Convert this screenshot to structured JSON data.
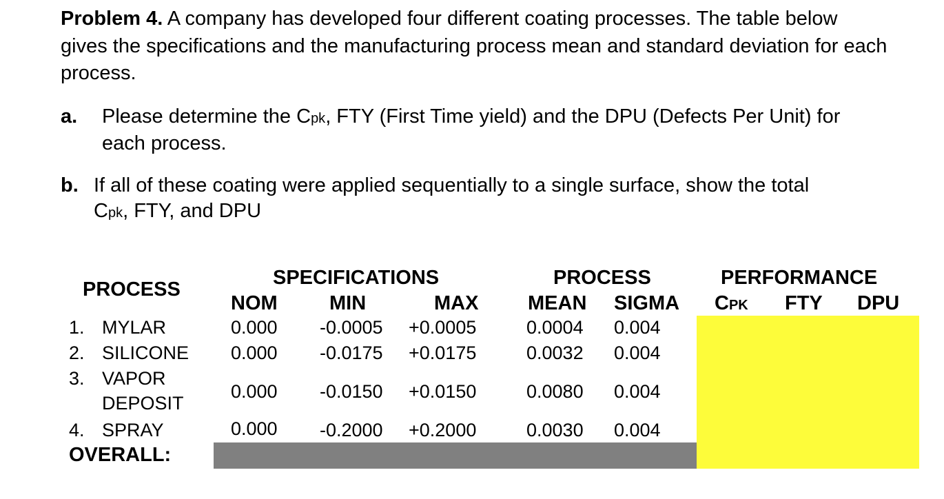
{
  "intro": {
    "label": "Problem 4.",
    "text": " A company has developed four different coating processes. The table below gives the specifications and the manufacturing process mean and standard deviation for each process."
  },
  "items": [
    {
      "marker": "a.",
      "line1_pre": "Please determine the C",
      "line1_sub": "pk",
      "line1_post": ", FTY (First Time yield) and the DPU (Defects Per Unit) for",
      "line2": "each process."
    },
    {
      "marker": "b.",
      "line1": "If all of these coating were applied sequentially to a single surface, show the total",
      "line2_pre": "C",
      "line2_sub": "pk",
      "line2_post": ", FTY, and DPU"
    }
  ],
  "table": {
    "group_headers": {
      "process": "PROCESS",
      "specifications": "SPECIFICATIONS",
      "process_stats": "PROCESS",
      "performance": "PERFORMANCE"
    },
    "columns": {
      "nom": "NOM",
      "min": "MIN",
      "max": "MAX",
      "mean": "MEAN",
      "sigma": "SIGMA",
      "cpk": "Cpk",
      "fty": "FTY",
      "dpu": "DPU"
    },
    "rows": [
      {
        "num": "1.",
        "name": "MYLAR",
        "name2": "",
        "nom": "0.000",
        "min": "-0.0005",
        "max": "+0.0005",
        "mean": "0.0004",
        "sigma": "0.004"
      },
      {
        "num": "2.",
        "name": "SILICONE",
        "name2": "",
        "nom": "0.000",
        "min": "-0.0175",
        "max": "+0.0175",
        "mean": "0.0032",
        "sigma": "0.004"
      },
      {
        "num": "3.",
        "name": "VAPOR",
        "name2": "DEPOSIT",
        "nom": "0.000",
        "min": "-0.0150",
        "max": "+0.0150",
        "mean": "0.0080",
        "sigma": "0.004"
      },
      {
        "num": "4.",
        "name": "SPRAY",
        "name2": "",
        "nom": "0.000",
        "min": "-0.2000",
        "max": "+0.2000",
        "mean": "0.0030",
        "sigma": "0.004"
      }
    ],
    "overall_label": "OVERALL:"
  },
  "colors": {
    "performance_fill": "#fdfc3a",
    "overall_fill": "#808080"
  }
}
